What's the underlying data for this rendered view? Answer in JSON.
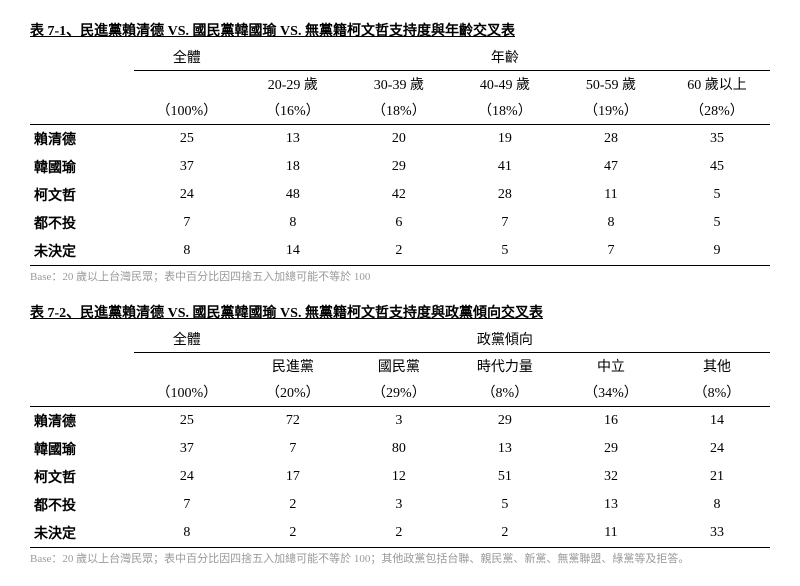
{
  "table1": {
    "title": "表 7-1、民進黨賴清德 VS. 國民黨韓國瑜 VS. 無黨籍柯文哲支持度與年齡交叉表",
    "group_overall": "全體",
    "group_dim": "年齡",
    "cols": [
      "20-29 歲",
      "30-39 歲",
      "40-49 歲",
      "50-59 歲",
      "60 歲以上"
    ],
    "pct_overall": "（100%）",
    "pcts": [
      "（16%）",
      "（18%）",
      "（18%）",
      "（19%）",
      "（28%）"
    ],
    "rows": [
      {
        "label": "賴清德",
        "overall": "25",
        "v": [
          "13",
          "20",
          "19",
          "28",
          "35"
        ]
      },
      {
        "label": "韓國瑜",
        "overall": "37",
        "v": [
          "18",
          "29",
          "41",
          "47",
          "45"
        ]
      },
      {
        "label": "柯文哲",
        "overall": "24",
        "v": [
          "48",
          "42",
          "28",
          "11",
          "5"
        ]
      },
      {
        "label": "都不投",
        "overall": "7",
        "v": [
          "8",
          "6",
          "7",
          "8",
          "5"
        ]
      },
      {
        "label": "未決定",
        "overall": "8",
        "v": [
          "14",
          "2",
          "5",
          "7",
          "9"
        ]
      }
    ],
    "footnote": "Base：20 歲以上台灣民眾；表中百分比因四捨五入加總可能不等於 100"
  },
  "table2": {
    "title": "表 7-2、民進黨賴清德 VS. 國民黨韓國瑜 VS. 無黨籍柯文哲支持度與政黨傾向交叉表",
    "group_overall": "全體",
    "group_dim": "政黨傾向",
    "cols": [
      "民進黨",
      "國民黨",
      "時代力量",
      "中立",
      "其他"
    ],
    "pct_overall": "（100%）",
    "pcts": [
      "（20%）",
      "（29%）",
      "（8%）",
      "（34%）",
      "（8%）"
    ],
    "rows": [
      {
        "label": "賴清德",
        "overall": "25",
        "v": [
          "72",
          "3",
          "29",
          "16",
          "14"
        ]
      },
      {
        "label": "韓國瑜",
        "overall": "37",
        "v": [
          "7",
          "80",
          "13",
          "29",
          "24"
        ]
      },
      {
        "label": "柯文哲",
        "overall": "24",
        "v": [
          "17",
          "12",
          "51",
          "32",
          "21"
        ]
      },
      {
        "label": "都不投",
        "overall": "7",
        "v": [
          "2",
          "3",
          "5",
          "13",
          "8"
        ]
      },
      {
        "label": "未決定",
        "overall": "8",
        "v": [
          "2",
          "2",
          "2",
          "11",
          "33"
        ]
      }
    ],
    "footnote": "Base：20 歲以上台灣民眾；表中百分比因四捨五入加總可能不等於 100；其他政黨包括台聯、親民黨、新黨、無黨聯盟、綠黨等及拒答。"
  }
}
